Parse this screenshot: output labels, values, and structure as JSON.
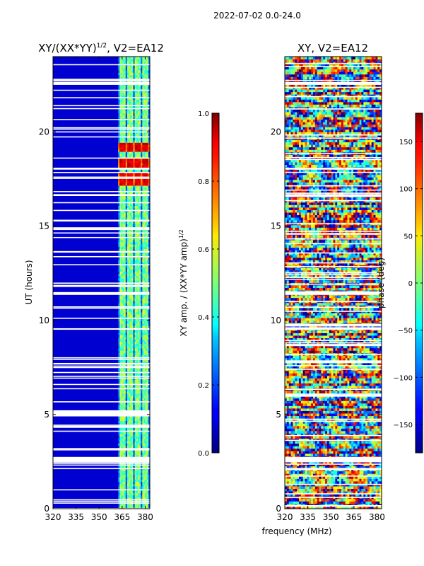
{
  "figure": {
    "suptitle": "2022-07-02 0.0-24.0"
  },
  "chart_data": [
    {
      "type": "heatmap",
      "title_text": "XY/(XX*YY)",
      "title_sup": "1/2",
      "title_tail": ", V2=EA12",
      "xlabel": "",
      "ylabel": "UT (hours)",
      "xlim": [
        320,
        383
      ],
      "ylim": [
        0,
        24
      ],
      "xticks": [
        320,
        335,
        350,
        365,
        380
      ],
      "yticks": [
        0,
        5,
        10,
        15,
        20
      ],
      "colorbar": {
        "label_text": "XY amp. / (XX*YY amp)",
        "label_sup": "1/2",
        "range": [
          0.0,
          1.0
        ],
        "ticks": [
          "0.0",
          "0.2",
          "0.4",
          "0.6",
          "0.8",
          "1.0"
        ]
      },
      "high_channels_mhz": [
        364,
        366,
        369,
        371,
        374,
        376,
        379,
        381
      ],
      "bright_band_hours": [
        [
          17.2,
          17.9
        ],
        [
          18.1,
          18.6
        ],
        [
          19.0,
          19.4
        ]
      ],
      "gap_hours": [
        [
          4.9,
          5.2
        ],
        [
          2.5,
          2.75
        ],
        [
          11.35,
          11.5
        ],
        [
          18.0,
          18.1
        ],
        [
          22.5,
          22.65
        ],
        [
          16.6,
          16.7
        ],
        [
          9.5,
          9.58
        ]
      ]
    },
    {
      "type": "heatmap",
      "title": "XY, V2=EA12",
      "xlabel": "frequency (MHz)",
      "ylabel": "",
      "xlim": [
        320,
        383
      ],
      "ylim": [
        0,
        24
      ],
      "xticks": [
        320,
        335,
        350,
        365,
        380
      ],
      "yticks": [
        0,
        5,
        10,
        15,
        20
      ],
      "colorbar": {
        "label": "phase (deg)",
        "range": [
          -180,
          180
        ],
        "ticks": [
          "−150",
          "−100",
          "−50",
          "0",
          "50",
          "100",
          "150"
        ]
      },
      "gap_hours": [
        [
          2.5,
          2.75
        ],
        [
          11.35,
          11.5
        ],
        [
          18.0,
          18.1
        ],
        [
          22.5,
          22.65
        ],
        [
          16.6,
          16.7
        ],
        [
          9.5,
          9.58
        ]
      ]
    }
  ]
}
